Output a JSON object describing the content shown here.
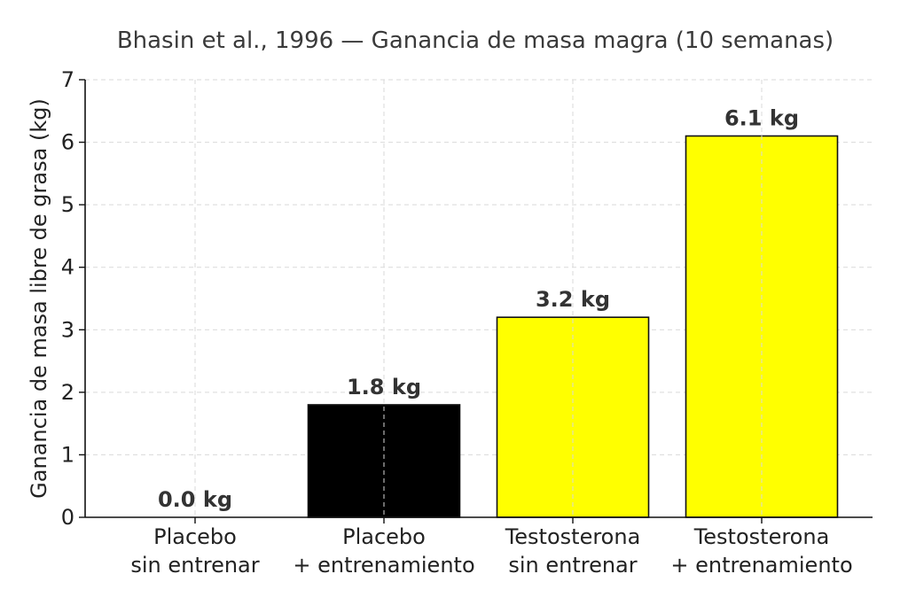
{
  "chart_data": {
    "type": "bar",
    "title": "Bhasin et al., 1996 — Ganancia de masa magra (10 semanas)",
    "xlabel": "",
    "ylabel": "Ganancia de masa libre de grasa (kg)",
    "ylim": [
      0,
      7
    ],
    "yticks": [
      "0",
      "1",
      "2",
      "3",
      "4",
      "5",
      "6",
      "7"
    ],
    "grid": true,
    "categories": [
      [
        "Placebo",
        "sin entrenar"
      ],
      [
        "Placebo",
        "+ entrenamiento"
      ],
      [
        "Testosterona",
        "sin entrenar"
      ],
      [
        "Testosterona",
        "+ entrenamiento"
      ]
    ],
    "values": [
      0.0,
      1.8,
      3.2,
      6.1
    ],
    "data_labels": [
      "0.0 kg",
      "1.8 kg",
      "3.2 kg",
      "6.1 kg"
    ],
    "colors": [
      "#000000",
      "#000000",
      "#ffff00",
      "#ffff00"
    ]
  }
}
